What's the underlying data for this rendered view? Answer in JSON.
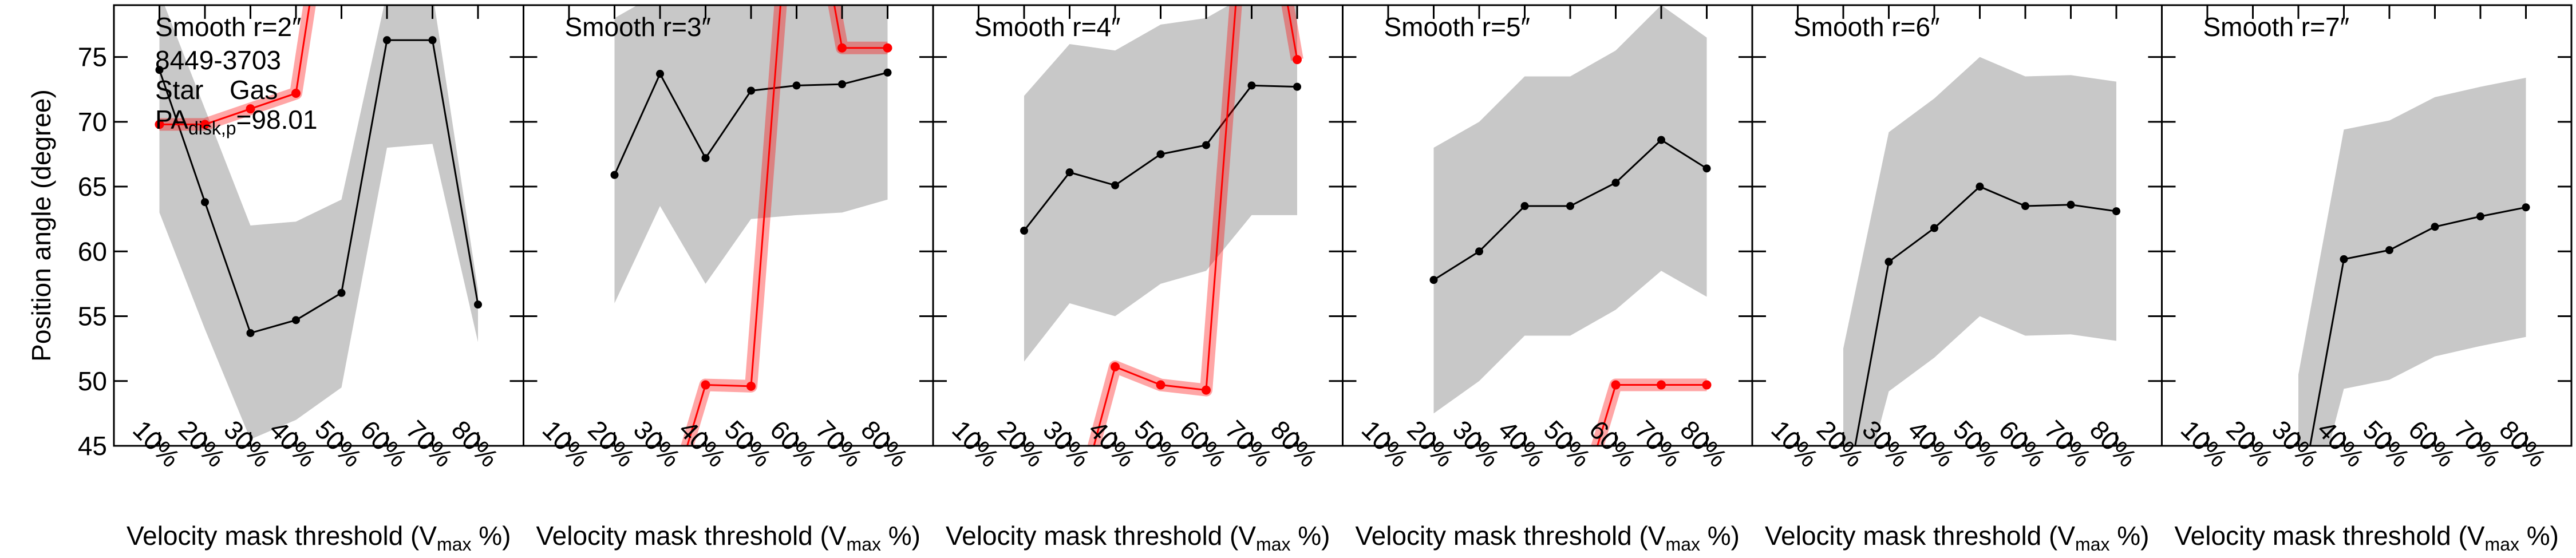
{
  "chart_data": [
    {
      "type": "line",
      "title": "Smooth r=2″",
      "xlabel": [
        "Velocity mask threshold (V",
        "max",
        " %)"
      ],
      "ylabel": "Position angle (degree)",
      "legend_title": "8449-3703",
      "annotation": [
        "PA",
        "disk,p",
        "=98.01"
      ],
      "categories": [
        "10%",
        "20%",
        "30%",
        "40%",
        "50%",
        "60%",
        "70%",
        "80%"
      ],
      "ylim": [
        45,
        79
      ],
      "yticks": [
        45,
        50,
        55,
        60,
        65,
        70,
        75
      ],
      "band_color": "#c8c8c8",
      "series": [
        {
          "name": "Star",
          "color": "#000000",
          "values": [
            74.0,
            63.8,
            53.7,
            54.7,
            56.8,
            76.3,
            76.3,
            55.9
          ],
          "lower": [
            63,
            54,
            45.5,
            47,
            49.5,
            68,
            68.3,
            53
          ],
          "upper": [
            80,
            71,
            62,
            62.3,
            64,
            80,
            80,
            57
          ]
        },
        {
          "name": "Gas",
          "color": "#ff0000",
          "values": [
            69.8,
            69.8,
            71.0,
            72.2,
            95,
            null,
            null,
            null
          ]
        }
      ]
    },
    {
      "type": "line",
      "title": "Smooth r=3″",
      "xlabel": [
        "Velocity mask threshold (V",
        "max",
        " %)"
      ],
      "categories": [
        "10%",
        "20%",
        "30%",
        "40%",
        "50%",
        "60%",
        "70%",
        "80%"
      ],
      "ylim": [
        45,
        79
      ],
      "yticks": [
        45,
        50,
        55,
        60,
        65,
        70,
        75
      ],
      "band_color": "#c8c8c8",
      "series": [
        {
          "color": "#000000",
          "values": [
            null,
            65.9,
            73.7,
            67.2,
            72.4,
            72.8,
            72.9,
            73.8
          ],
          "lower": [
            null,
            56,
            63.5,
            57.5,
            62.5,
            62.8,
            63,
            64
          ],
          "upper": [
            null,
            78,
            80,
            80,
            80,
            80,
            80,
            80
          ]
        },
        {
          "color": "#ff0000",
          "values": [
            null,
            null,
            38,
            49.7,
            49.6,
            95,
            75.7,
            75.7
          ]
        }
      ]
    },
    {
      "type": "line",
      "title": "Smooth r=4″",
      "xlabel": [
        "Velocity mask threshold (V",
        "max",
        " %)"
      ],
      "categories": [
        "10%",
        "20%",
        "30%",
        "40%",
        "50%",
        "60%",
        "70%",
        "80%"
      ],
      "ylim": [
        45,
        79
      ],
      "yticks": [
        45,
        50,
        55,
        60,
        65,
        70,
        75
      ],
      "band_color": "#c8c8c8",
      "series": [
        {
          "color": "#000000",
          "values": [
            null,
            61.6,
            66.1,
            65.1,
            67.5,
            68.2,
            72.8,
            72.7
          ],
          "lower": [
            null,
            51.5,
            56,
            55,
            57.5,
            58.5,
            62.8,
            62.8
          ],
          "upper": [
            null,
            72,
            76,
            75.5,
            77.5,
            78,
            80,
            80
          ]
        },
        {
          "color": "#ff0000",
          "values": [
            null,
            null,
            38,
            51.1,
            49.7,
            49.3,
            95,
            74.8
          ]
        }
      ]
    },
    {
      "type": "line",
      "title": "Smooth r=5″",
      "xlabel": [
        "Velocity mask threshold (V",
        "max",
        " %)"
      ],
      "categories": [
        "10%",
        "20%",
        "30%",
        "40%",
        "50%",
        "60%",
        "70%",
        "80%"
      ],
      "ylim": [
        45,
        79
      ],
      "yticks": [
        45,
        50,
        55,
        60,
        65,
        70,
        75
      ],
      "band_color": "#c8c8c8",
      "series": [
        {
          "color": "#000000",
          "values": [
            null,
            57.8,
            60.0,
            63.5,
            63.5,
            65.3,
            68.6,
            66.4
          ],
          "lower": [
            null,
            47.5,
            50,
            53.5,
            53.5,
            55.5,
            58.5,
            56.5
          ],
          "upper": [
            null,
            68,
            70,
            73.5,
            73.5,
            75.5,
            79,
            76.5
          ]
        },
        {
          "color": "#ff0000",
          "values": [
            null,
            null,
            null,
            null,
            38,
            49.7,
            49.7,
            49.7
          ]
        }
      ]
    },
    {
      "type": "line",
      "title": "Smooth r=6″",
      "xlabel": [
        "Velocity mask threshold (V",
        "max",
        " %)"
      ],
      "categories": [
        "10%",
        "20%",
        "30%",
        "40%",
        "50%",
        "60%",
        "70%",
        "80%"
      ],
      "ylim": [
        45,
        79
      ],
      "yticks": [
        45,
        50,
        55,
        60,
        65,
        70,
        75
      ],
      "band_color": "#c8c8c8",
      "series": [
        {
          "color": "#000000",
          "values": [
            null,
            40,
            59.2,
            61.8,
            65.0,
            63.5,
            63.6,
            63.1
          ],
          "lower": [
            null,
            36,
            49.2,
            51.8,
            55,
            53.5,
            53.6,
            53.1
          ],
          "upper": [
            null,
            52.5,
            69.2,
            71.8,
            75,
            73.5,
            73.6,
            73.1
          ]
        }
      ]
    },
    {
      "type": "line",
      "title": "Smooth r=7″",
      "xlabel": [
        "Velocity mask threshold (V",
        "max",
        " %)"
      ],
      "categories": [
        "10%",
        "20%",
        "30%",
        "40%",
        "50%",
        "60%",
        "70%",
        "80%"
      ],
      "ylim": [
        45,
        79
      ],
      "yticks": [
        45,
        50,
        55,
        60,
        65,
        70,
        75
      ],
      "band_color": "#c8c8c8",
      "series": [
        {
          "color": "#000000",
          "values": [
            null,
            null,
            40,
            59.4,
            60.1,
            61.9,
            62.7,
            63.4
          ],
          "lower": [
            null,
            null,
            36,
            49.4,
            50.1,
            51.9,
            52.7,
            53.4
          ],
          "upper": [
            null,
            null,
            50.5,
            69.4,
            70.1,
            71.9,
            72.7,
            73.4
          ]
        }
      ]
    }
  ]
}
